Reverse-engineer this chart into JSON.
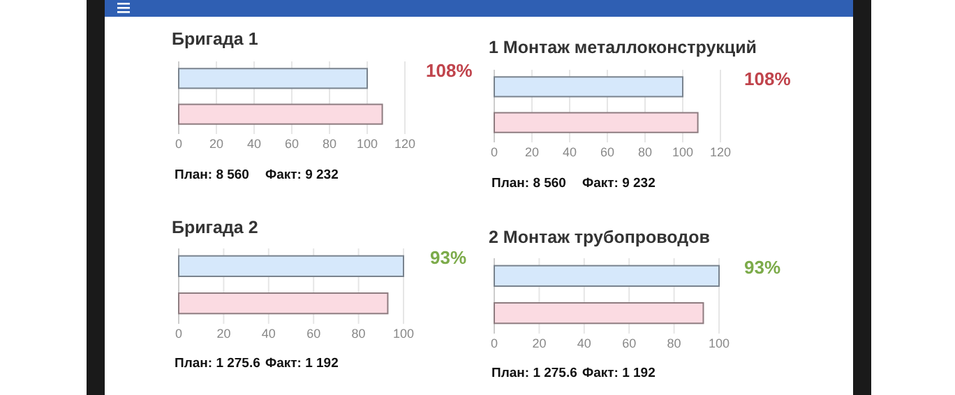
{
  "chart_data": [
    {
      "type": "bar",
      "orientation": "horizontal",
      "title": "Бригада 1",
      "categories": [
        null,
        null
      ],
      "values": [
        100,
        108
      ],
      "colors": [
        "#d6e8fb",
        "#fbdbe2"
      ],
      "xlim": [
        0,
        120
      ],
      "xticks": [
        0,
        20,
        40,
        60,
        80,
        100,
        120
      ],
      "grid": "x",
      "tick_labels": "x",
      "annotations": [
        "108%",
        "План: 8 560",
        "Факт: 9 232"
      ]
    },
    {
      "type": "bar",
      "orientation": "horizontal",
      "title": "1 Монтаж металлоконструкций",
      "categories": [
        null,
        null
      ],
      "values": [
        100,
        108
      ],
      "colors": [
        "#d6e8fb",
        "#fbdbe2"
      ],
      "xlim": [
        0,
        120
      ],
      "xticks": [
        0,
        20,
        40,
        60,
        80,
        100,
        120
      ],
      "grid": "x",
      "tick_labels": "x",
      "annotations": [
        "108%",
        "План: 8 560",
        "Факт: 9 232"
      ]
    },
    {
      "type": "bar",
      "orientation": "horizontal",
      "title": "Бригада 2",
      "categories": [
        null,
        null
      ],
      "values": [
        100,
        93
      ],
      "colors": [
        "#d6e8fb",
        "#fbdbe2"
      ],
      "xlim": [
        0,
        100
      ],
      "xticks": [
        0,
        20,
        40,
        60,
        80,
        100
      ],
      "grid": "x",
      "tick_labels": "x",
      "annotations": [
        "93%",
        "План: 1 275.6",
        "Факт: 1 192"
      ]
    },
    {
      "type": "bar",
      "orientation": "horizontal",
      "title": "2 Монтаж трубопроводов",
      "categories": [
        null,
        null
      ],
      "values": [
        100,
        93
      ],
      "colors": [
        "#d6e8fb",
        "#fbdbe2"
      ],
      "xlim": [
        0,
        100
      ],
      "xticks": [
        0,
        20,
        40,
        60,
        80,
        100
      ],
      "grid": "x",
      "tick_labels": "x",
      "annotations": [
        "93%",
        "План: 1 275.6",
        "Факт: 1 192"
      ]
    }
  ]
}
